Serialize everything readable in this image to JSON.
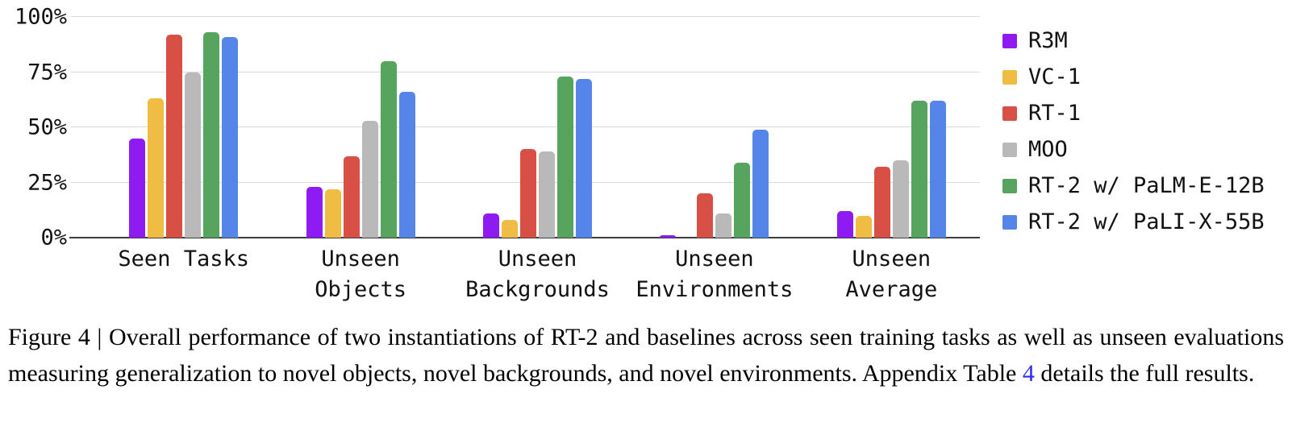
{
  "chart_data": {
    "type": "bar",
    "title": "",
    "xlabel": "",
    "ylabel": "",
    "unit": "percent",
    "ylim": [
      0,
      100
    ],
    "grid": true,
    "legend_position": "right",
    "categories": [
      "Seen Tasks",
      "Unseen Objects",
      "Unseen Backgrounds",
      "Unseen Environments",
      "Unseen Average"
    ],
    "category_label_lines": [
      [
        "Seen Tasks"
      ],
      [
        "Unseen",
        "Objects"
      ],
      [
        "Unseen",
        "Backgrounds"
      ],
      [
        "Unseen",
        "Environments"
      ],
      [
        "Unseen",
        "Average"
      ]
    ],
    "y_ticks": [
      {
        "label": "0%",
        "value": 0
      },
      {
        "label": "25%",
        "value": 25
      },
      {
        "label": "50%",
        "value": 50
      },
      {
        "label": "75%",
        "value": 75
      },
      {
        "label": "100%",
        "value": 100
      }
    ],
    "series": [
      {
        "name": "R3M",
        "color": "#8d1bf2",
        "values": [
          45,
          23,
          11,
          1,
          12
        ]
      },
      {
        "name": "VC-1",
        "color": "#efbd43",
        "values": [
          63,
          22,
          8,
          0,
          10
        ]
      },
      {
        "name": "RT-1",
        "color": "#d85045",
        "values": [
          92,
          37,
          40,
          20,
          32
        ]
      },
      {
        "name": "MOO",
        "color": "#b9b9b9",
        "values": [
          75,
          53,
          39,
          11,
          35
        ]
      },
      {
        "name": "RT-2 w/ PaLM-E-12B",
        "color": "#57a45e",
        "values": [
          93,
          80,
          73,
          34,
          62
        ]
      },
      {
        "name": "RT-2 w/ PaLI-X-55B",
        "color": "#5585e8",
        "values": [
          91,
          66,
          72,
          49,
          62
        ]
      }
    ],
    "colors": {
      "gridline": "#dadada",
      "axis_line": "#3d3d3d",
      "label_text": "#111111"
    }
  },
  "caption": {
    "part1": "Figure 4 | Overall performance of two instantiations of RT-2 and baselines across seen training tasks as well as unseen evaluations measuring generalization to novel objects, novel backgrounds, and novel environments. Appendix Table ",
    "link_text": "4",
    "part2": " details the full results.",
    "link_color": "#2d2df2"
  }
}
